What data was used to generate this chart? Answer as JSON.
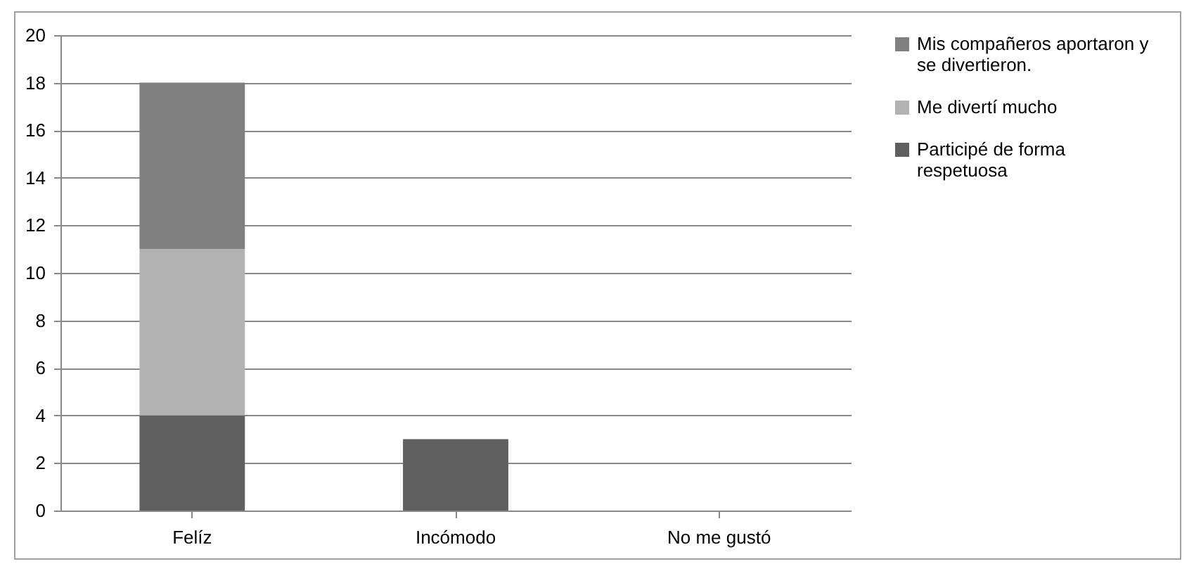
{
  "chart_data": {
    "type": "bar",
    "stacked": true,
    "categories": [
      "Felíz",
      "Incómodo",
      "No me gustó"
    ],
    "series": [
      {
        "name": "Participé de forma respetuosa",
        "color": "#606060",
        "values": [
          4,
          3,
          0
        ]
      },
      {
        "name": "Me divertí mucho",
        "color": "#b2b2b2",
        "values": [
          7,
          0,
          0
        ]
      },
      {
        "name": "Mis compañeros aportaron y se divertieron.",
        "color": "#808080",
        "values": [
          7,
          0,
          0
        ]
      }
    ],
    "ylim": [
      0,
      20
    ],
    "yticks": [
      0,
      2,
      4,
      6,
      8,
      10,
      12,
      14,
      16,
      18,
      20
    ],
    "grid": "y",
    "legend": "right"
  }
}
